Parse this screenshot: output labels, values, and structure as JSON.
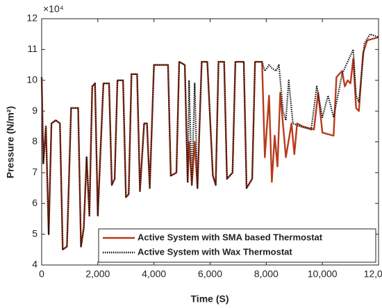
{
  "chart_data": {
    "type": "line",
    "x_label": "Time (S)",
    "y_label": "Pressure (N/m²)",
    "y_multiplier": "×10⁴",
    "xlim": [
      0,
      12000
    ],
    "ylim": [
      4,
      12
    ],
    "xticks": [
      0,
      {
        "value": 2000,
        "label": "2,000"
      },
      {
        "value": 4000,
        "label": "4,000"
      },
      {
        "value": 6000,
        "label": "6,000"
      },
      {
        "value": 8000,
        "label": "8,000"
      },
      {
        "value": 10000,
        "label": "10,000"
      },
      {
        "value": 12000,
        "label": "12,000"
      }
    ],
    "yticks": [
      4,
      5,
      6,
      7,
      8,
      9,
      10,
      11,
      12
    ],
    "legend": "lower right",
    "series": [
      {
        "name": "Active System with SMA based Thermostat",
        "color": "#b83a1c",
        "dash": "solid",
        "x": [
          0,
          60,
          150,
          250,
          350,
          500,
          650,
          750,
          900,
          1050,
          1300,
          1400,
          1500,
          1600,
          1700,
          1800,
          1900,
          2000,
          2100,
          2200,
          2400,
          2500,
          2600,
          2700,
          2900,
          3000,
          3100,
          3200,
          3400,
          3500,
          3650,
          3750,
          3850,
          4000,
          4200,
          4500,
          4600,
          4800,
          4900,
          5100,
          5200,
          5250,
          5350,
          5450,
          5550,
          5700,
          5900,
          6100,
          6200,
          6300,
          6500,
          6600,
          6800,
          6900,
          7200,
          7300,
          7500,
          7600,
          7850,
          7950,
          8100,
          8200,
          8300,
          8400,
          8500,
          8700,
          8900,
          9000,
          9100,
          9300,
          9700,
          9850,
          10000,
          10400,
          10500,
          10700,
          10800,
          10900,
          11000,
          11100,
          11200,
          11300,
          11450,
          11600,
          12000
        ],
        "values": [
          10.1,
          7.3,
          8.5,
          5.0,
          8.6,
          8.7,
          8.6,
          4.5,
          4.6,
          9.1,
          9.1,
          4.6,
          5.2,
          7.5,
          5.6,
          9.8,
          9.9,
          5.6,
          7.8,
          9.9,
          9.9,
          6.6,
          6.8,
          10.0,
          10.0,
          6.2,
          6.3,
          10.2,
          10.2,
          6.4,
          8.6,
          8.6,
          6.5,
          10.5,
          10.5,
          10.5,
          6.9,
          7.0,
          10.6,
          10.5,
          6.7,
          8.0,
          6.6,
          8.0,
          6.5,
          10.6,
          10.6,
          6.9,
          6.6,
          10.6,
          10.6,
          6.8,
          7.0,
          10.6,
          10.6,
          6.5,
          6.8,
          10.6,
          10.6,
          7.5,
          9.5,
          6.7,
          8.2,
          7.2,
          9.6,
          7.5,
          8.6,
          7.6,
          8.6,
          8.5,
          8.4,
          9.6,
          8.3,
          8.2,
          10.1,
          10.3,
          9.8,
          10.0,
          9.9,
          10.7,
          9.1,
          9.0,
          10.9,
          11.3,
          11.4
        ]
      },
      {
        "name": "Active System with Wax Thermostat",
        "color": "#111111",
        "dash": "dotted",
        "x": [
          0,
          60,
          150,
          250,
          350,
          500,
          650,
          750,
          900,
          1050,
          1300,
          1400,
          1500,
          1600,
          1700,
          1800,
          1900,
          2000,
          2100,
          2200,
          2400,
          2500,
          2600,
          2700,
          2900,
          3000,
          3100,
          3200,
          3400,
          3500,
          3650,
          3750,
          3850,
          4000,
          4200,
          4500,
          4600,
          4800,
          4900,
          5100,
          5200,
          5250,
          5350,
          5450,
          5550,
          5700,
          5900,
          6100,
          6200,
          6300,
          6500,
          6600,
          6800,
          6900,
          7200,
          7300,
          7500,
          7600,
          7850,
          7950,
          8100,
          8200,
          8350,
          8450,
          8600,
          8700,
          8800,
          8950,
          9200,
          9600,
          9800,
          10000,
          10200,
          10400,
          10700,
          10800,
          11000,
          11100,
          11200,
          11300,
          11500,
          11700,
          12000
        ],
        "values": [
          10.1,
          7.3,
          8.5,
          5.0,
          8.6,
          8.7,
          8.6,
          4.5,
          4.6,
          9.1,
          9.1,
          4.6,
          5.2,
          7.5,
          5.6,
          9.8,
          9.9,
          5.6,
          7.8,
          9.9,
          9.9,
          6.6,
          6.8,
          10.0,
          10.0,
          6.2,
          6.3,
          10.2,
          10.2,
          6.4,
          8.6,
          8.6,
          6.5,
          10.5,
          10.5,
          10.5,
          6.9,
          7.0,
          10.6,
          10.5,
          6.7,
          10.0,
          6.6,
          9.9,
          6.5,
          10.6,
          10.6,
          6.9,
          6.6,
          10.6,
          10.6,
          6.8,
          7.0,
          10.6,
          10.6,
          6.5,
          6.8,
          10.6,
          10.6,
          10.3,
          10.5,
          10.4,
          10.3,
          10.5,
          9.0,
          8.7,
          10.0,
          8.6,
          8.5,
          8.4,
          9.8,
          8.8,
          9.5,
          8.8,
          10.2,
          10.4,
          10.8,
          11.0,
          9.5,
          9.3,
          11.2,
          11.5,
          11.4
        ]
      }
    ]
  }
}
